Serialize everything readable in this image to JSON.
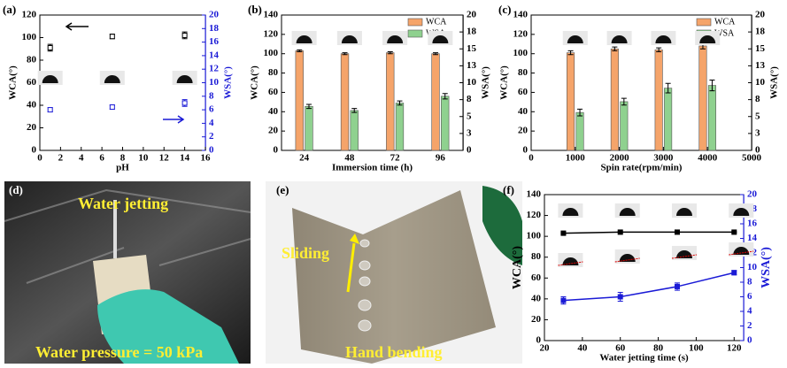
{
  "chart_data": [
    {
      "type": "scatter",
      "panel_label": "(a)",
      "xlabel": "pH",
      "ylabel": "WCA(°)",
      "y2label": "WSA(°)",
      "y2_color": "#1a1ad6",
      "x": [
        1,
        7,
        14
      ],
      "xlim": [
        0,
        16
      ],
      "xticks": [
        0,
        2,
        4,
        6,
        8,
        10,
        12,
        14,
        16
      ],
      "ylim": [
        0,
        120
      ],
      "yticks": [
        0,
        20,
        40,
        60,
        80,
        100,
        120
      ],
      "y2lim": [
        0,
        20
      ],
      "y2ticks": [
        0,
        2,
        4,
        6,
        8,
        10,
        12,
        14,
        16,
        18,
        20
      ],
      "series": [
        {
          "color": "#000000",
          "values": [
            91,
            101,
            102
          ],
          "errors": [
            3,
            2,
            3
          ]
        },
        {
          "color": "#1a1ad6",
          "axis": "y2",
          "values": [
            6.0,
            6.4,
            7.0
          ],
          "errors": [
            0.3,
            0.3,
            0.5
          ]
        }
      ]
    },
    {
      "type": "bar",
      "panel_label": "(b)",
      "xlabel": "Immersion time (h)",
      "ylabel": "WCA(°)",
      "y2label": "WSA(°)",
      "y2_color": "#000000",
      "legend": "upper right",
      "categories": [
        "24",
        "48",
        "72",
        "96"
      ],
      "ylim": [
        0,
        140
      ],
      "yticks": [
        0,
        20,
        40,
        60,
        80,
        100,
        120,
        140
      ],
      "y2lim": [
        0,
        20
      ],
      "y2ticks": [
        0,
        {
          "value": 2.5,
          "label": "3"
        },
        5,
        {
          "value": 7.5,
          "label": "8"
        },
        10,
        {
          "value": 12.5,
          "label": "13"
        },
        15,
        {
          "value": 17.5,
          "label": "18"
        },
        20
      ],
      "series": [
        {
          "name": "WCA",
          "color": "#f5a46a",
          "values": [
            103,
            100,
            101,
            100
          ],
          "errors": [
            1,
            1,
            1,
            1
          ]
        },
        {
          "name": "WSA",
          "color": "#8fd18f",
          "axis": "y2",
          "values": [
            6.5,
            5.9,
            7.0,
            8.0
          ],
          "errors": [
            0.3,
            0.3,
            0.3,
            0.4
          ]
        }
      ]
    },
    {
      "type": "bar",
      "panel_label": "(c)",
      "xlabel": "Spin rate(rpm/min)",
      "ylabel": "WCA(°)",
      "y2label": "WSA(°)",
      "y2_color": "#000000",
      "legend": "upper right",
      "x": [
        1000,
        2000,
        3000,
        4000
      ],
      "xlim": [
        0,
        5000
      ],
      "xticks": [
        0,
        1000,
        2000,
        3000,
        4000,
        5000
      ],
      "ylim": [
        0,
        140
      ],
      "yticks": [
        0,
        20,
        40,
        60,
        80,
        100,
        120,
        140
      ],
      "y2lim": [
        0,
        20
      ],
      "y2ticks": [
        0,
        {
          "value": 2.5,
          "label": "3"
        },
        5,
        {
          "value": 7.5,
          "label": "8"
        },
        10,
        {
          "value": 12.5,
          "label": "13"
        },
        15,
        {
          "value": 17.5,
          "label": "18"
        },
        20
      ],
      "series": [
        {
          "name": "WCA",
          "color": "#f5a46a",
          "values": [
            101,
            105,
            104,
            108
          ],
          "errors": [
            2,
            2,
            2,
            3
          ]
        },
        {
          "name": "WSA",
          "color": "#8fd18f",
          "axis": "y2",
          "values": [
            5.6,
            7.2,
            9.2,
            9.6
          ],
          "errors": [
            0.5,
            0.5,
            0.7,
            0.8
          ]
        }
      ]
    },
    {
      "type": "line",
      "panel_label": "(f)",
      "xlabel": "Water jetting time (s)",
      "ylabel": "WCA(°)",
      "y2label": "WSA(°)",
      "y2_color": "#1a1ad6",
      "x": [
        30,
        60,
        90,
        120
      ],
      "xlim": [
        20,
        125
      ],
      "xticks": [
        20,
        40,
        60,
        80,
        100,
        120
      ],
      "ylim": [
        0,
        140
      ],
      "yticks": [
        0,
        20,
        40,
        60,
        80,
        100,
        120,
        140
      ],
      "y2lim": [
        0,
        20
      ],
      "y2ticks": [
        0,
        2,
        4,
        6,
        8,
        10,
        12,
        14,
        16,
        18,
        20
      ],
      "series": [
        {
          "color": "#000000",
          "values": [
            103,
            104,
            104,
            104
          ],
          "errors": [
            0.5,
            0.5,
            0.5,
            0.5
          ]
        },
        {
          "color": "#1a1ad6",
          "axis": "y2",
          "values": [
            5.5,
            6.0,
            7.4,
            9.3
          ],
          "errors": [
            0.5,
            0.6,
            0.5,
            0.3
          ]
        }
      ]
    }
  ],
  "photos": [
    {
      "label": "(d)",
      "texts": [
        "Water jetting",
        "Water pressure = 50 kPa"
      ]
    },
    {
      "label": "(e)",
      "texts": [
        "Sliding",
        "Hand bending"
      ]
    }
  ]
}
